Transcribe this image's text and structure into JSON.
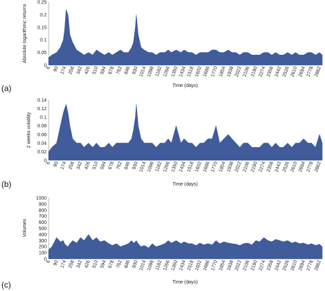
{
  "chart_data": [
    {
      "type": "area",
      "panel_label": "(a)",
      "xlabel": "Time (days)",
      "ylabel": "Absolute logarithmic returns",
      "ylim": [
        0,
        0.25
      ],
      "yticks": [
        "0",
        "0.05",
        "0.1",
        "0.15",
        "0.2",
        "0.25"
      ],
      "xticks": [
        "6",
        "90",
        "174",
        "258",
        "342",
        "426",
        "510",
        "594",
        "678",
        "762",
        "846",
        "930",
        "1014",
        "1098",
        "1182",
        "1266",
        "1350",
        "1434",
        "1518",
        "1602",
        "1686",
        "1770",
        "1854",
        "1938",
        "2022",
        "2106",
        "2190",
        "2274",
        "2358",
        "2442",
        "2526",
        "2610",
        "2694",
        "2778",
        "2862"
      ],
      "color": "#1f3f8a",
      "x": [
        6,
        40,
        90,
        130,
        160,
        174,
        190,
        210,
        230,
        258,
        300,
        342,
        380,
        426,
        470,
        510,
        550,
        594,
        640,
        678,
        720,
        762,
        800,
        846,
        880,
        900,
        920,
        930,
        950,
        980,
        1014,
        1060,
        1098,
        1140,
        1182,
        1230,
        1266,
        1300,
        1350,
        1400,
        1434,
        1480,
        1518,
        1560,
        1602,
        1640,
        1686,
        1730,
        1770,
        1810,
        1854,
        1900,
        1938,
        1980,
        2022,
        2060,
        2106,
        2150,
        2190,
        2230,
        2274,
        2320,
        2358,
        2400,
        2442,
        2480,
        2526,
        2570,
        2610,
        2650,
        2694,
        2740,
        2778,
        2820,
        2862,
        2900
      ],
      "values": [
        0.03,
        0.04,
        0.05,
        0.07,
        0.1,
        0.14,
        0.22,
        0.2,
        0.12,
        0.09,
        0.06,
        0.05,
        0.04,
        0.05,
        0.04,
        0.06,
        0.05,
        0.04,
        0.05,
        0.04,
        0.05,
        0.06,
        0.05,
        0.05,
        0.07,
        0.09,
        0.15,
        0.2,
        0.12,
        0.07,
        0.06,
        0.05,
        0.05,
        0.04,
        0.05,
        0.05,
        0.06,
        0.05,
        0.06,
        0.05,
        0.06,
        0.05,
        0.05,
        0.04,
        0.05,
        0.05,
        0.05,
        0.06,
        0.06,
        0.05,
        0.05,
        0.06,
        0.05,
        0.05,
        0.04,
        0.05,
        0.05,
        0.04,
        0.04,
        0.04,
        0.05,
        0.05,
        0.04,
        0.05,
        0.04,
        0.04,
        0.05,
        0.04,
        0.05,
        0.04,
        0.04,
        0.05,
        0.05,
        0.04,
        0.05,
        0.04
      ]
    },
    {
      "type": "area",
      "panel_label": "(b)",
      "xlabel": "Time (days)",
      "ylabel": "2 weeks volatility",
      "ylim": [
        0,
        0.14
      ],
      "yticks": [
        "0",
        "0.02",
        "0.04",
        "0.06",
        "0.08",
        "0.1",
        "0.12",
        "0.14"
      ],
      "xticks": [
        "6",
        "90",
        "174",
        "258",
        "342",
        "426",
        "510",
        "594",
        "678",
        "762",
        "846",
        "930",
        "1014",
        "1098",
        "1182",
        "1266",
        "1350",
        "1434",
        "1518",
        "1602",
        "1686",
        "1770",
        "1854",
        "1938",
        "2022",
        "2106",
        "2190",
        "2274",
        "2358",
        "2442",
        "2526",
        "2610",
        "2694",
        "2778",
        "2862"
      ],
      "color": "#1f3f8a",
      "x": [
        6,
        40,
        90,
        130,
        160,
        174,
        190,
        210,
        230,
        258,
        300,
        342,
        380,
        426,
        470,
        510,
        550,
        594,
        640,
        678,
        720,
        762,
        800,
        846,
        880,
        900,
        920,
        930,
        950,
        980,
        1014,
        1060,
        1098,
        1140,
        1182,
        1230,
        1266,
        1300,
        1350,
        1400,
        1434,
        1480,
        1518,
        1560,
        1602,
        1640,
        1686,
        1730,
        1770,
        1810,
        1854,
        1900,
        1938,
        1980,
        2022,
        2060,
        2106,
        2150,
        2190,
        2230,
        2274,
        2320,
        2358,
        2400,
        2442,
        2480,
        2526,
        2570,
        2610,
        2650,
        2694,
        2740,
        2778,
        2820,
        2862,
        2900
      ],
      "values": [
        0.02,
        0.03,
        0.04,
        0.08,
        0.11,
        0.12,
        0.13,
        0.11,
        0.08,
        0.05,
        0.04,
        0.04,
        0.03,
        0.04,
        0.03,
        0.04,
        0.03,
        0.03,
        0.04,
        0.03,
        0.04,
        0.04,
        0.04,
        0.04,
        0.05,
        0.07,
        0.1,
        0.13,
        0.08,
        0.05,
        0.04,
        0.04,
        0.04,
        0.03,
        0.04,
        0.04,
        0.05,
        0.04,
        0.08,
        0.04,
        0.05,
        0.04,
        0.04,
        0.03,
        0.04,
        0.04,
        0.05,
        0.05,
        0.08,
        0.04,
        0.05,
        0.06,
        0.05,
        0.04,
        0.03,
        0.04,
        0.04,
        0.03,
        0.03,
        0.03,
        0.04,
        0.04,
        0.03,
        0.04,
        0.03,
        0.03,
        0.04,
        0.03,
        0.04,
        0.04,
        0.05,
        0.04,
        0.04,
        0.03,
        0.06,
        0.04
      ]
    },
    {
      "type": "area",
      "panel_label": "(c)",
      "xlabel": "Time (days)",
      "ylabel": "Volumes",
      "ylim": [
        0,
        1000
      ],
      "yticks": [
        "0",
        "100",
        "200",
        "300",
        "400",
        "500",
        "600",
        "700",
        "800",
        "900",
        "1000"
      ],
      "xticks": [
        "6",
        "90",
        "174",
        "258",
        "342",
        "426",
        "510",
        "594",
        "678",
        "762",
        "846",
        "930",
        "1014",
        "1098",
        "1182",
        "1266",
        "1350",
        "1434",
        "1518",
        "1602",
        "1686",
        "1770",
        "1854",
        "1938",
        "2022",
        "2106",
        "2190",
        "2274",
        "2358",
        "2442",
        "2526",
        "2610",
        "2694",
        "2778",
        "2862"
      ],
      "color": "#1f3f8a",
      "x": [
        6,
        40,
        90,
        130,
        160,
        174,
        190,
        210,
        230,
        258,
        300,
        342,
        380,
        426,
        470,
        510,
        550,
        594,
        640,
        678,
        720,
        762,
        800,
        846,
        880,
        900,
        920,
        930,
        950,
        980,
        1014,
        1060,
        1098,
        1140,
        1182,
        1230,
        1266,
        1300,
        1350,
        1400,
        1434,
        1480,
        1518,
        1560,
        1602,
        1640,
        1686,
        1730,
        1770,
        1810,
        1854,
        1900,
        1938,
        1980,
        2022,
        2060,
        2106,
        2150,
        2190,
        2230,
        2274,
        2320,
        2358,
        2400,
        2442,
        2480,
        2526,
        2570,
        2610,
        2650,
        2694,
        2740,
        2778,
        2820,
        2862,
        2900
      ],
      "values": [
        150,
        200,
        350,
        280,
        300,
        250,
        220,
        200,
        250,
        300,
        260,
        350,
        300,
        400,
        300,
        350,
        280,
        300,
        250,
        220,
        250,
        200,
        220,
        250,
        300,
        260,
        280,
        300,
        250,
        200,
        220,
        180,
        250,
        200,
        220,
        250,
        300,
        260,
        300,
        250,
        280,
        250,
        250,
        220,
        260,
        230,
        250,
        230,
        300,
        250,
        280,
        260,
        250,
        240,
        220,
        250,
        260,
        230,
        300,
        280,
        350,
        300,
        280,
        320,
        300,
        280,
        300,
        260,
        280,
        250,
        260,
        230,
        250,
        220,
        240,
        200
      ]
    }
  ]
}
